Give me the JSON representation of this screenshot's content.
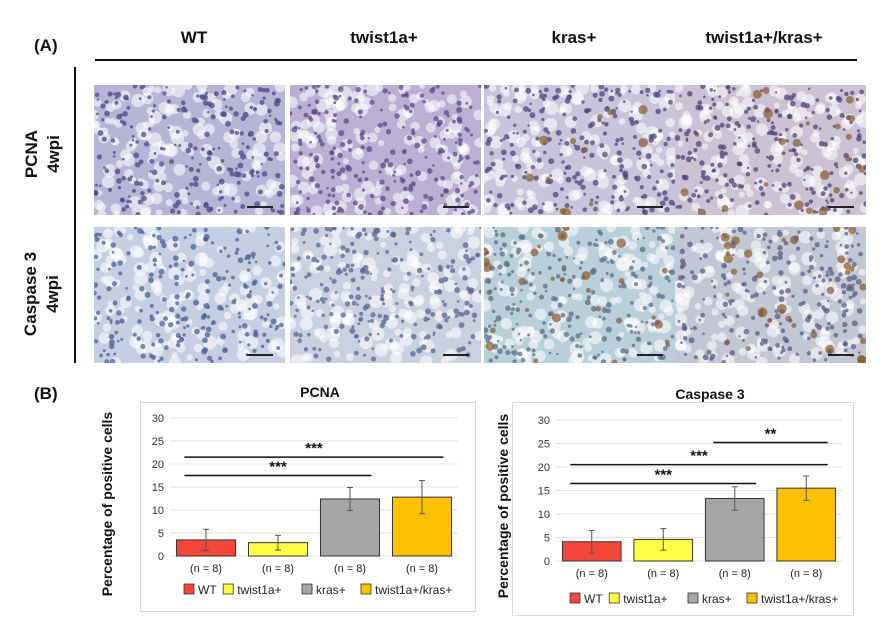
{
  "panel_a_label": "(A)",
  "panel_b_label": "(B)",
  "columns": [
    "WT",
    "twist1a+",
    "kras+",
    "twist1a+/kras+"
  ],
  "rows": [
    {
      "line1": "PCNA",
      "line2": "4wpi"
    },
    {
      "line1": "Caspase 3",
      "line2": "4wpi"
    }
  ],
  "micrographs": [
    {
      "name": "pcna-wt",
      "tint": "#b7b5d6",
      "nuclei": "#4a4a86",
      "brown": 0
    },
    {
      "name": "pcna-twist1a",
      "tint": "#b9b0d3",
      "nuclei": "#5a4a8a",
      "brown": 0
    },
    {
      "name": "pcna-kras",
      "tint": "#c8c4db",
      "nuclei": "#4b4a7a",
      "brown": 12
    },
    {
      "name": "pcna-twist1a-kras",
      "tint": "#cbc2d4",
      "nuclei": "#4e4676",
      "brown": 22
    },
    {
      "name": "casp3-wt",
      "tint": "#c4cfe2",
      "nuclei": "#4d5f96",
      "brown": 0
    },
    {
      "name": "casp3-twist1a",
      "tint": "#c9d1e0",
      "nuclei": "#566791",
      "brown": 0
    },
    {
      "name": "casp3-kras",
      "tint": "#b9cfd9",
      "nuclei": "#5b6f86",
      "brown": 26
    },
    {
      "name": "casp3-twist1a-kras",
      "tint": "#c2c7d6",
      "nuclei": "#5c5e86",
      "brown": 30
    }
  ],
  "colors": {
    "wt": "#f4473b",
    "twist1a": "#ffff44",
    "kras": "#a6a6a6",
    "twist_kras": "#ffc000"
  },
  "y_axis_label": "Percentage of positive cells",
  "chart_data": [
    {
      "type": "bar",
      "title": "PCNA",
      "categories": [
        "WT",
        "twist1a+",
        "kras+",
        "twist1a+/kras+"
      ],
      "values": [
        3.5,
        2.9,
        12.4,
        12.8
      ],
      "errors": [
        2.3,
        1.6,
        2.5,
        3.6
      ],
      "n_labels": [
        "(n = 8)",
        "(n = 8)",
        "(n = 8)",
        "(n = 8)"
      ],
      "ylim": [
        0,
        30
      ],
      "yticks": [
        0,
        5,
        10,
        15,
        20,
        25,
        30
      ],
      "significance": [
        {
          "from": 0,
          "to": 2,
          "label": "***",
          "y": 17.5
        },
        {
          "from": 0,
          "to": 3,
          "label": "***",
          "y": 21.5
        }
      ],
      "legend": [
        "WT",
        "twist1a+",
        "kras+",
        "twist1a+/kras+"
      ]
    },
    {
      "type": "bar",
      "title": "Caspase 3",
      "categories": [
        "WT",
        "twist1a+",
        "kras+",
        "twist1a+/kras+"
      ],
      "values": [
        4.1,
        4.6,
        13.3,
        15.5
      ],
      "errors": [
        2.4,
        2.3,
        2.5,
        2.6
      ],
      "n_labels": [
        "(n = 8)",
        "(n = 8)",
        "(n = 8)",
        "(n = 8)"
      ],
      "ylim": [
        0,
        30
      ],
      "yticks": [
        0,
        5,
        10,
        15,
        20,
        25,
        30
      ],
      "significance": [
        {
          "from": 0,
          "to": 2,
          "label": "***",
          "y": 16.5
        },
        {
          "from": 0,
          "to": 3,
          "label": "***",
          "y": 20.5
        },
        {
          "from": 2,
          "to": 3,
          "label": "**",
          "y": 25.2
        }
      ],
      "legend": [
        "WT",
        "twist1a+",
        "kras+",
        "twist1a+/kras+"
      ]
    }
  ]
}
